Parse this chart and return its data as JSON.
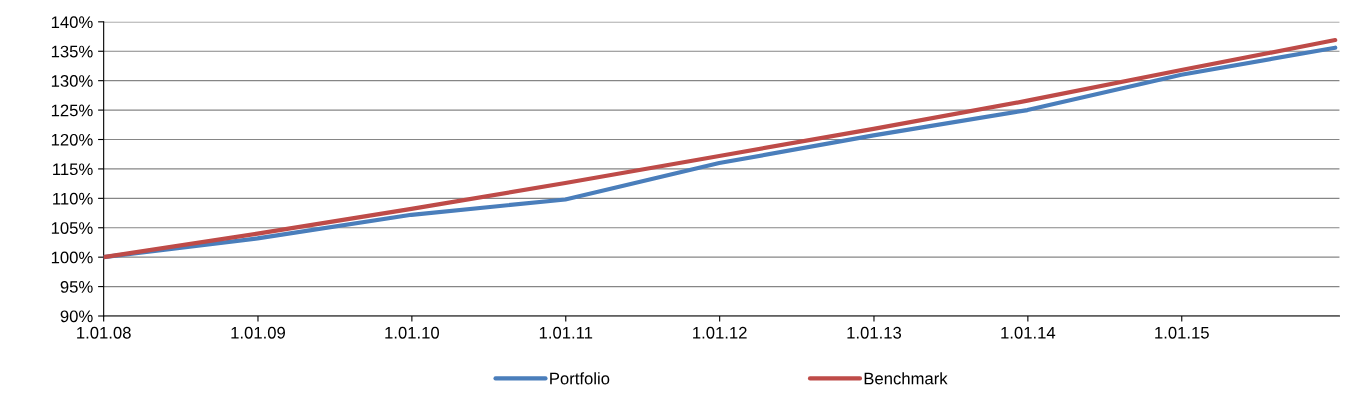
{
  "chart_data": {
    "type": "line",
    "x": [
      "2008-01-01",
      "2008-12-31",
      "2009-12-31",
      "2010-12-31",
      "2011-12-31",
      "2012-12-31",
      "2013-12-31",
      "2014-12-31",
      "2015-12-31"
    ],
    "series": [
      {
        "name": "Portfolio",
        "color": "#4a7ebb",
        "values": [
          100,
          103.2,
          107.2,
          109.8,
          116.0,
          120.7,
          125.0,
          131.0,
          135.6
        ]
      },
      {
        "name": "Benchmark",
        "color": "#be4b48",
        "values": [
          100,
          104.0,
          108.2,
          112.6,
          117.2,
          121.8,
          126.6,
          131.8,
          136.9
        ]
      }
    ],
    "xlim": [
      "2008-01-01",
      "2016-01-10"
    ],
    "xticks": [
      {
        "value": "2008-01-01",
        "label": "1.01.08"
      },
      {
        "value": "2009-01-01",
        "label": "1.01.09"
      },
      {
        "value": "2010-01-01",
        "label": "1.01.10"
      },
      {
        "value": "2011-01-01",
        "label": "1.01.11"
      },
      {
        "value": "2012-01-01",
        "label": "1.01.12"
      },
      {
        "value": "2013-01-01",
        "label": "1.01.13"
      },
      {
        "value": "2014-01-01",
        "label": "1.01.14"
      },
      {
        "value": "2015-01-01",
        "label": "1.01.15"
      }
    ],
    "ylim": [
      90,
      140
    ],
    "yticks": [
      {
        "value": 90,
        "label": "90%"
      },
      {
        "value": 95,
        "label": "95%"
      },
      {
        "value": 100,
        "label": "100%"
      },
      {
        "value": 105,
        "label": "105%"
      },
      {
        "value": 110,
        "label": "110%"
      },
      {
        "value": 115,
        "label": "115%"
      },
      {
        "value": 120,
        "label": "120%"
      },
      {
        "value": 125,
        "label": "125%"
      },
      {
        "value": 130,
        "label": "130%"
      },
      {
        "value": 135,
        "label": "135%"
      },
      {
        "value": 140,
        "label": "140%"
      }
    ],
    "grid": "y",
    "legend": "bottom",
    "marker": "none",
    "line_style": "solid"
  }
}
